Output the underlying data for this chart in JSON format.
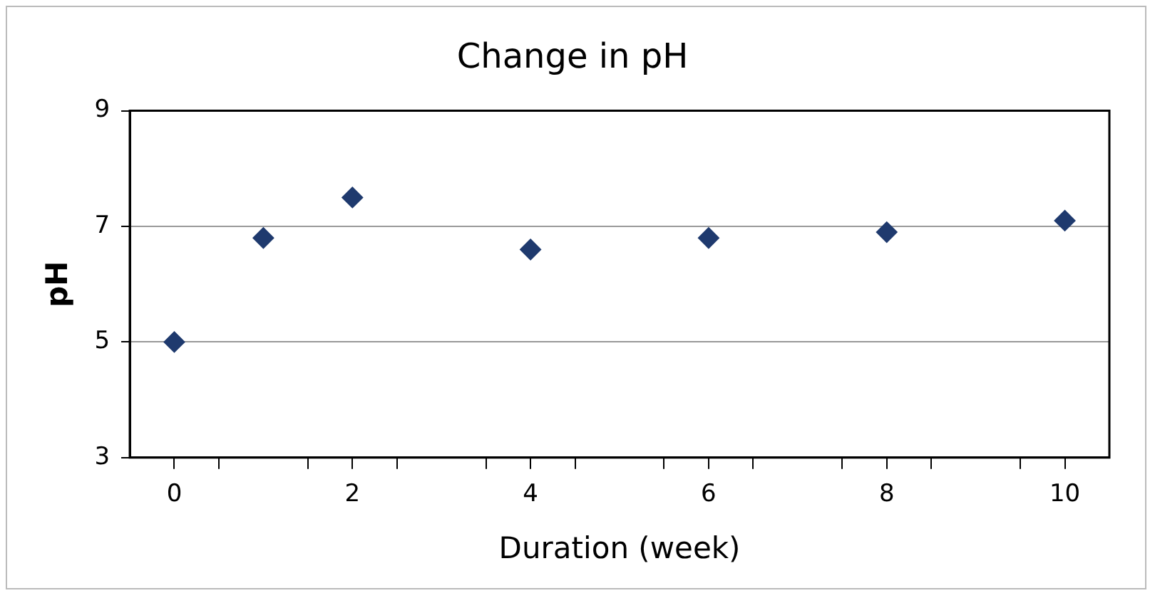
{
  "chart_data": {
    "type": "scatter",
    "title": "Change in pH",
    "xlabel": "Duration (week)",
    "ylabel": "pH",
    "x": [
      0,
      1,
      2,
      4,
      6,
      8,
      10
    ],
    "values": [
      5.0,
      6.8,
      7.5,
      6.6,
      6.8,
      6.9,
      7.1
    ],
    "color": "#1f3a6e",
    "marker": "diamond",
    "xlim": [
      -0.5,
      10.5
    ],
    "xticks": [
      0,
      {
        "value": 0.5,
        "label": null
      },
      {
        "value": 1.5,
        "label": null
      },
      2,
      {
        "value": 2.5,
        "label": null
      },
      {
        "value": 3.5,
        "label": null
      },
      4,
      {
        "value": 4.5,
        "label": null
      },
      {
        "value": 5.5,
        "label": null
      },
      6,
      {
        "value": 6.5,
        "label": null
      },
      {
        "value": 7.5,
        "label": null
      },
      8,
      {
        "value": 8.5,
        "label": null
      },
      {
        "value": 9.5,
        "label": null
      },
      10
    ],
    "ylim": [
      3,
      9
    ],
    "yticks": [
      3,
      5,
      7,
      9
    ],
    "grid": "y",
    "legend": false
  }
}
